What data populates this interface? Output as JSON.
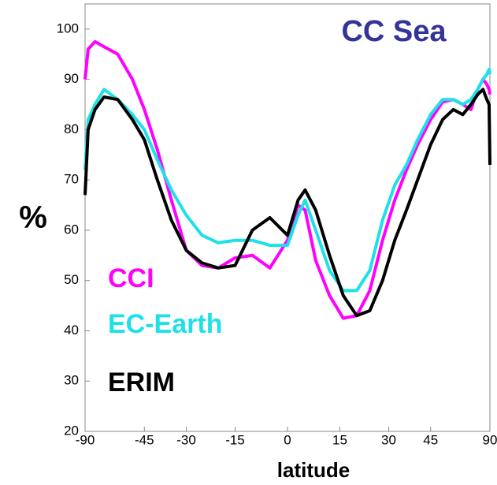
{
  "chart_data": {
    "type": "line",
    "title": "CC Sea",
    "x_label": "latitude",
    "y_label": "%",
    "x_scale": "sine",
    "xlim": [
      -90,
      90
    ],
    "ylim": [
      20,
      105
    ],
    "xticks": [
      -90,
      -45,
      -30,
      -15,
      0,
      15,
      30,
      45,
      90
    ],
    "yticks": [
      20,
      30,
      40,
      50,
      60,
      70,
      80,
      90,
      100
    ],
    "grid": false,
    "x": [
      -90,
      -80,
      -72,
      -65,
      -57,
      -50,
      -45,
      -40,
      -35,
      -30,
      -25,
      -20,
      -15,
      -10,
      -5,
      0,
      3,
      5,
      8,
      12,
      16,
      20,
      24,
      28,
      32,
      36,
      40,
      45,
      50,
      55,
      60,
      65,
      70,
      75,
      80,
      85,
      90
    ],
    "series": [
      {
        "name": "CCI",
        "color": "#ff00ff",
        "values": [
          90,
          96,
          97.5,
          96.5,
          95,
          90,
          84,
          76,
          66,
          56,
          53,
          52.5,
          54.5,
          55,
          52.5,
          58,
          65,
          64,
          54,
          47,
          42.5,
          43,
          48,
          58,
          66,
          72,
          77,
          82,
          85.5,
          86,
          85,
          84,
          88,
          90,
          89,
          88,
          87
        ]
      },
      {
        "name": "EC-Earth",
        "color": "#1ee0e8",
        "values": [
          72,
          82,
          85,
          88,
          86,
          83,
          80,
          74,
          68,
          63,
          59,
          57.5,
          58,
          58,
          57,
          57,
          63,
          66,
          60,
          52,
          48,
          48,
          52,
          62,
          69,
          73,
          78,
          83,
          86,
          86,
          85,
          86,
          88,
          90,
          91,
          92,
          91
        ]
      },
      {
        "name": "ERIM",
        "color": "#000000",
        "values": [
          67,
          80,
          84,
          86.5,
          86,
          82,
          78,
          70,
          62,
          56,
          53.5,
          52.5,
          53,
          60,
          62.5,
          59,
          66,
          68,
          64,
          55,
          47,
          43,
          44,
          50,
          58,
          64,
          70,
          77,
          82,
          84,
          83,
          85,
          87,
          88,
          86,
          85,
          73
        ]
      }
    ]
  }
}
